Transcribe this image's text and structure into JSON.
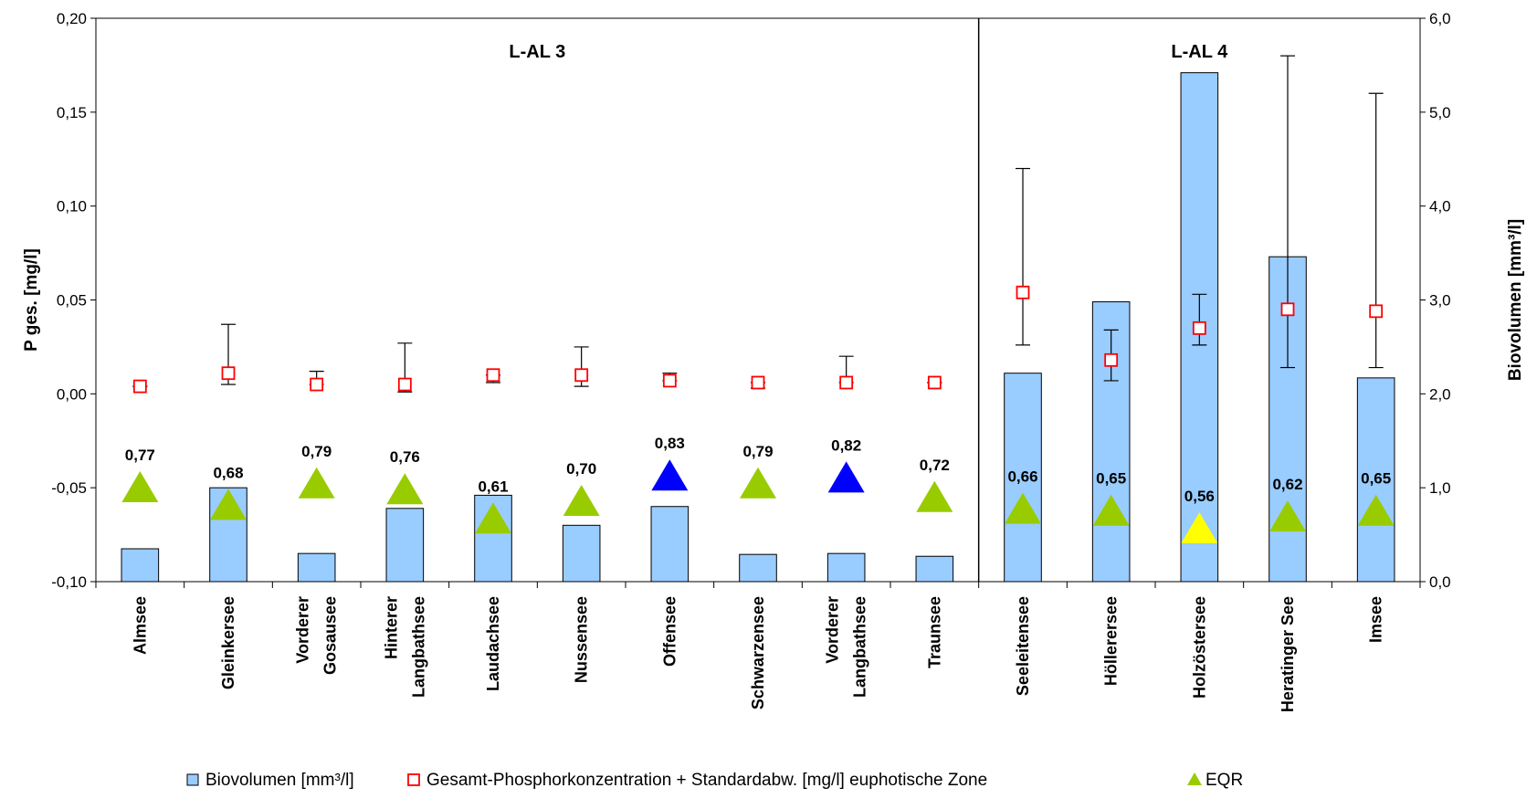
{
  "chart_data": {
    "type": "bar",
    "y_left": {
      "label": "P ges. [mg/l]",
      "lim": [
        -0.1,
        0.2
      ],
      "ticks": [
        "-0,10",
        "-0,05",
        "0,00",
        "0,05",
        "0,10",
        "0,15",
        "0,20"
      ]
    },
    "y_right": {
      "label": "Biovolumen [mm³/l]",
      "lim": [
        0.0,
        6.0
      ],
      "ticks": [
        "0,0",
        "1,0",
        "2,0",
        "3,0",
        "4,0",
        "5,0",
        "6,0"
      ]
    },
    "groups": [
      {
        "label": "L-AL 3",
        "first": 0,
        "last": 9
      },
      {
        "label": "L-AL 4",
        "first": 10,
        "last": 14
      }
    ],
    "categories": [
      [
        "Almsee"
      ],
      [
        "Gleinkersee"
      ],
      [
        "Vorderer",
        "Gosausee"
      ],
      [
        "Hinterer",
        "Langbathsee"
      ],
      [
        "Laudachsee"
      ],
      [
        "Nussensee"
      ],
      [
        "Offensee"
      ],
      [
        "Schwarzensee"
      ],
      [
        "Vorderer",
        "Langbathsee"
      ],
      [
        "Traunsee"
      ],
      [
        "Seeleitensee"
      ],
      [
        "Höllerersee"
      ],
      [
        "Holzöstersee"
      ],
      [
        "Heratinger See"
      ],
      [
        "Imsee"
      ]
    ],
    "series": [
      {
        "name": "Biovolumen [mm³/l]",
        "axis": "right",
        "color": "#99ccff",
        "values": [
          0.35,
          1.0,
          0.3,
          0.78,
          0.92,
          0.6,
          0.8,
          0.29,
          0.3,
          0.27,
          2.22,
          2.98,
          5.42,
          3.46,
          2.17
        ]
      },
      {
        "name": "Gesamt-Phosphorkonzentration + Standardabw. [mg/l] euphotische Zone",
        "axis": "left",
        "color": "#ff0000",
        "values": [
          0.004,
          0.011,
          0.005,
          0.005,
          0.01,
          0.01,
          0.007,
          0.006,
          0.006,
          0.006,
          0.054,
          0.018,
          0.035,
          0.045,
          0.044
        ],
        "error_low": [
          0.004,
          0.005,
          0.005,
          0.001,
          0.006,
          0.004,
          0.007,
          0.003,
          0.006,
          0.006,
          0.026,
          0.007,
          0.026,
          0.014,
          0.014
        ],
        "error_high": [
          0.004,
          0.037,
          0.012,
          0.027,
          0.01,
          0.025,
          0.011,
          0.006,
          0.02,
          0.006,
          0.12,
          0.034,
          0.053,
          0.18,
          0.16
        ]
      },
      {
        "name": "EQR",
        "axis": "right",
        "color": "#99cc00",
        "values": [
          0.77,
          0.68,
          0.79,
          0.76,
          0.61,
          0.7,
          0.83,
          0.79,
          0.82,
          0.72,
          0.66,
          0.65,
          0.56,
          0.62,
          0.65
        ],
        "labels": [
          "0,77",
          "0,68",
          "0,79",
          "0,76",
          "0,61",
          "0,70",
          "0,83",
          "0,79",
          "0,82",
          "0,72",
          "0,66",
          "0,65",
          "0,56",
          "0,62",
          "0,65"
        ],
        "marker_colors": [
          "#99cc00",
          "#99cc00",
          "#99cc00",
          "#99cc00",
          "#99cc00",
          "#99cc00",
          "#0000ff",
          "#99cc00",
          "#0000ff",
          "#99cc00",
          "#99cc00",
          "#99cc00",
          "#ffff00",
          "#99cc00",
          "#99cc00"
        ]
      }
    ],
    "legend": {
      "position": "bottom",
      "items": [
        "Biovolumen [mm³/l]",
        "Gesamt-Phosphorkonzentration + Standardabw. [mg/l] euphotische Zone",
        "EQR"
      ]
    },
    "grid": false
  }
}
